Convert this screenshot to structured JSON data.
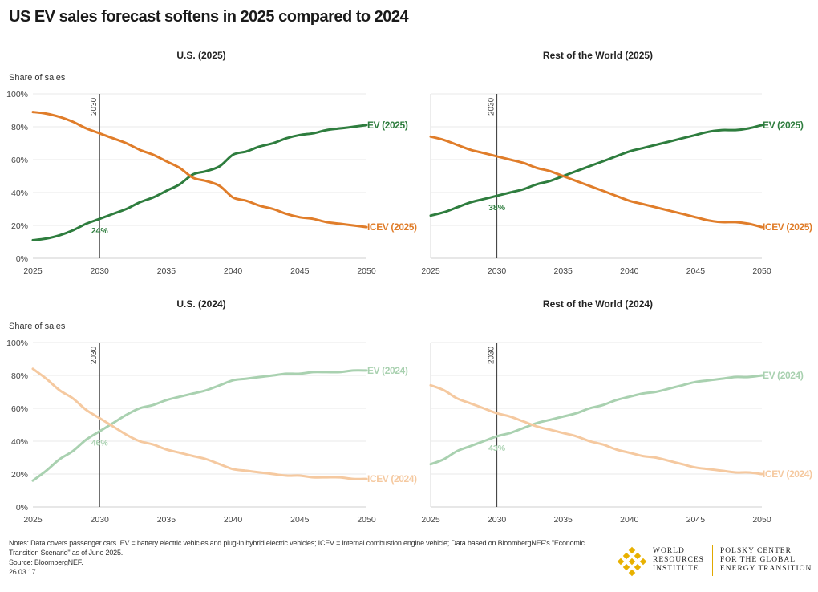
{
  "title": "US EV sales forecast softens in 2025 compared to 2024",
  "colors": {
    "ev_2025": "#2e7d3e",
    "icev_2025": "#e07d2a",
    "ev_2024": "#a9d1b0",
    "icev_2024": "#f5c9a0",
    "grid": "#e9e9e9",
    "vline": "#333333",
    "logo_gold": "#e8b100"
  },
  "chart_data": [
    {
      "type": "line",
      "title": "U.S. (2025)",
      "ylabel": "Share of sales",
      "x": [
        2025,
        2026,
        2027,
        2028,
        2029,
        2030,
        2031,
        2032,
        2033,
        2034,
        2035,
        2036,
        2037,
        2038,
        2039,
        2040,
        2041,
        2042,
        2043,
        2044,
        2045,
        2046,
        2047,
        2048,
        2049,
        2050
      ],
      "xlim": [
        2025,
        2050
      ],
      "ylim": [
        0,
        100
      ],
      "xticks": [
        "2025",
        "2030",
        "2035",
        "2040",
        "2045",
        "2050"
      ],
      "yticks": [
        "0%",
        "20%",
        "40%",
        "60%",
        "80%",
        "100%"
      ],
      "vline_label": "2030",
      "annotation": "24%",
      "series": [
        {
          "name": "EV (2025)",
          "color_key": "ev_2025",
          "values": [
            11,
            12,
            14,
            17,
            21,
            24,
            27,
            30,
            34,
            37,
            41,
            45,
            51,
            53,
            56,
            63,
            65,
            68,
            70,
            73,
            75,
            76,
            78,
            79,
            80,
            81
          ]
        },
        {
          "name": "ICEV (2025)",
          "color_key": "icev_2025",
          "values": [
            89,
            88,
            86,
            83,
            79,
            76,
            73,
            70,
            66,
            63,
            59,
            55,
            49,
            47,
            44,
            37,
            35,
            32,
            30,
            27,
            25,
            24,
            22,
            21,
            20,
            19
          ]
        }
      ]
    },
    {
      "type": "line",
      "title": "Rest of the World (2025)",
      "ylabel": "",
      "x": [
        2025,
        2026,
        2027,
        2028,
        2029,
        2030,
        2031,
        2032,
        2033,
        2034,
        2035,
        2036,
        2037,
        2038,
        2039,
        2040,
        2041,
        2042,
        2043,
        2044,
        2045,
        2046,
        2047,
        2048,
        2049,
        2050
      ],
      "xlim": [
        2025,
        2050
      ],
      "ylim": [
        0,
        100
      ],
      "xticks": [
        "2025",
        "2030",
        "2035",
        "2040",
        "2045",
        "2050"
      ],
      "yticks": [
        "0%",
        "20%",
        "40%",
        "60%",
        "80%",
        "100%"
      ],
      "vline_label": "2030",
      "annotation": "38%",
      "series": [
        {
          "name": "EV (2025)",
          "color_key": "ev_2025",
          "values": [
            26,
            28,
            31,
            34,
            36,
            38,
            40,
            42,
            45,
            47,
            50,
            53,
            56,
            59,
            62,
            65,
            67,
            69,
            71,
            73,
            75,
            77,
            78,
            78,
            79,
            81
          ]
        },
        {
          "name": "ICEV (2025)",
          "color_key": "icev_2025",
          "values": [
            74,
            72,
            69,
            66,
            64,
            62,
            60,
            58,
            55,
            53,
            50,
            47,
            44,
            41,
            38,
            35,
            33,
            31,
            29,
            27,
            25,
            23,
            22,
            22,
            21,
            19
          ]
        }
      ]
    },
    {
      "type": "line",
      "title": "U.S. (2024)",
      "ylabel": "Share of sales",
      "x": [
        2025,
        2026,
        2027,
        2028,
        2029,
        2030,
        2031,
        2032,
        2033,
        2034,
        2035,
        2036,
        2037,
        2038,
        2039,
        2040,
        2041,
        2042,
        2043,
        2044,
        2045,
        2046,
        2047,
        2048,
        2049,
        2050
      ],
      "xlim": [
        2025,
        2050
      ],
      "ylim": [
        0,
        100
      ],
      "xticks": [
        "2025",
        "2030",
        "2035",
        "2040",
        "2045",
        "2050"
      ],
      "yticks": [
        "0%",
        "20%",
        "40%",
        "60%",
        "80%",
        "100%"
      ],
      "vline_label": "2030",
      "annotation": "46%",
      "series": [
        {
          "name": "EV (2024)",
          "color_key": "ev_2024",
          "values": [
            16,
            22,
            29,
            34,
            41,
            46,
            51,
            56,
            60,
            62,
            65,
            67,
            69,
            71,
            74,
            77,
            78,
            79,
            80,
            81,
            81,
            82,
            82,
            82,
            83,
            83
          ]
        },
        {
          "name": "ICEV (2024)",
          "color_key": "icev_2024",
          "values": [
            84,
            78,
            71,
            66,
            59,
            54,
            49,
            44,
            40,
            38,
            35,
            33,
            31,
            29,
            26,
            23,
            22,
            21,
            20,
            19,
            19,
            18,
            18,
            18,
            17,
            17
          ]
        }
      ]
    },
    {
      "type": "line",
      "title": "Rest of the World (2024)",
      "ylabel": "",
      "x": [
        2025,
        2026,
        2027,
        2028,
        2029,
        2030,
        2031,
        2032,
        2033,
        2034,
        2035,
        2036,
        2037,
        2038,
        2039,
        2040,
        2041,
        2042,
        2043,
        2044,
        2045,
        2046,
        2047,
        2048,
        2049,
        2050
      ],
      "xlim": [
        2025,
        2050
      ],
      "ylim": [
        0,
        100
      ],
      "xticks": [
        "2025",
        "2030",
        "2035",
        "2040",
        "2045",
        "2050"
      ],
      "yticks": [
        "0%",
        "20%",
        "40%",
        "60%",
        "80%",
        "100%"
      ],
      "vline_label": "2030",
      "annotation": "43%",
      "series": [
        {
          "name": "EV (2024)",
          "color_key": "ev_2024",
          "values": [
            26,
            29,
            34,
            37,
            40,
            43,
            45,
            48,
            51,
            53,
            55,
            57,
            60,
            62,
            65,
            67,
            69,
            70,
            72,
            74,
            76,
            77,
            78,
            79,
            79,
            80
          ]
        },
        {
          "name": "ICEV (2024)",
          "color_key": "icev_2024",
          "values": [
            74,
            71,
            66,
            63,
            60,
            57,
            55,
            52,
            49,
            47,
            45,
            43,
            40,
            38,
            35,
            33,
            31,
            30,
            28,
            26,
            24,
            23,
            22,
            21,
            21,
            20
          ]
        }
      ]
    }
  ],
  "footer": {
    "notes": "Notes: Data covers passenger cars. EV = battery electric vehicles and plug-in hybrid electric vehicles; ICEV = internal combustion engine vehicle; Data based on BloombergNEF's \"Economic Transition Scenario\" as of June 2025.",
    "source_prefix": "Source: ",
    "source_link": "BloombergNEF",
    "source_suffix": ".",
    "date": "26.03.17"
  },
  "logos": {
    "wri_lines": [
      "World",
      "Resources",
      "Institute"
    ],
    "polsky_lines": [
      "Polsky Center",
      "for the Global",
      "Energy Transition"
    ]
  }
}
